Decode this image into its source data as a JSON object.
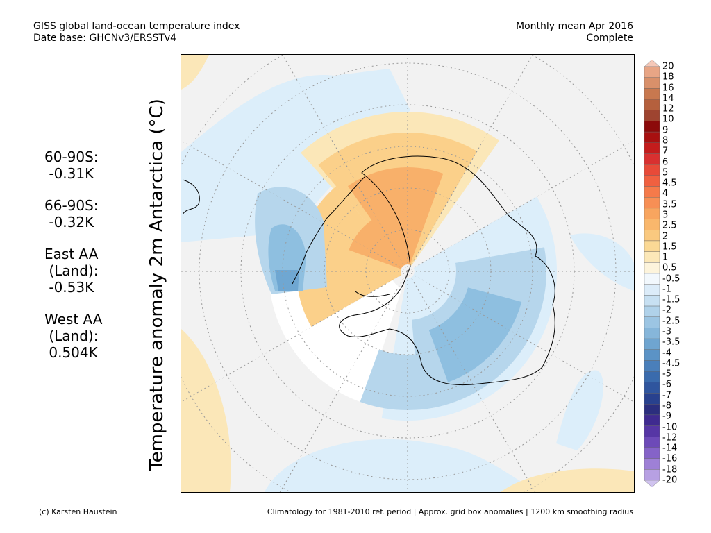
{
  "header": {
    "line1": "GISS global land-ocean temperature index",
    "line2": "Date base: GHCNv3/ERSSTv4",
    "period": "Monthly mean Apr 2016",
    "status": "Complete"
  },
  "vertical_title": "Temperature anomaly 2m Antarctica (°C)",
  "stats": [
    {
      "label": "60-90S:",
      "value": " -0.31K",
      "label2": ""
    },
    {
      "label": "66-90S:",
      "value": " -0.32K",
      "label2": ""
    },
    {
      "label": "East AA",
      "label2": " (Land):",
      "value": " -0.53K"
    },
    {
      "label": "West AA",
      "label2": " (Land):",
      "value": " 0.504K"
    }
  ],
  "colorbar": {
    "labels": [
      "20",
      "18",
      "16",
      "14",
      "12",
      "10",
      "9",
      "8",
      "7",
      "6",
      "5",
      "4.5",
      "4",
      "3.5",
      "3",
      "2.5",
      "2",
      "1.5",
      "1",
      "0.5",
      "-0.5",
      "-1",
      "-1.5",
      "-2",
      "-2.5",
      "-3",
      "-3.5",
      "-4",
      "-4.5",
      "-5",
      "-6",
      "-7",
      "-8",
      "-9",
      "-10",
      "-12",
      "-14",
      "-16",
      "-18",
      "-20"
    ],
    "colors": [
      "#f5c8b8",
      "#e8a585",
      "#d9906a",
      "#c8784f",
      "#b5603d",
      "#9e4430",
      "#8c0a0a",
      "#a81010",
      "#c41c1c",
      "#d93030",
      "#e84a38",
      "#f06040",
      "#f57a4a",
      "#f78f55",
      "#f8a55f",
      "#f9b76c",
      "#fac97f",
      "#fbd995",
      "#fce8b8",
      "#fdf4dc",
      "#f2f8fd",
      "#dcecf9",
      "#c7e0f2",
      "#b0d2ea",
      "#9cc5e3",
      "#86b6da",
      "#6fa5d0",
      "#5b93c6",
      "#4a7fba",
      "#3a6bad",
      "#2f559e",
      "#28418e",
      "#2b2e7e",
      "#3f2a90",
      "#5636a5",
      "#6d4ab8",
      "#8563c8",
      "#9e80d6",
      "#b7a0e3",
      "#d0c3ef"
    ]
  },
  "map": {
    "continent": "Antarctica",
    "colors": {
      "background": "#f2f2f2",
      "warm_light": "#fbe7b8",
      "warm_mid": "#fbd08a",
      "warm_strong": "#f8b06a",
      "cool_light": "#dceefa",
      "cool_mid": "#b6d6ec",
      "cool_strong": "#8ebfe0",
      "cool_deep": "#6fa7d2",
      "missing": "#ffffff"
    }
  },
  "footer": {
    "credit": "(c) Karsten Haustein",
    "note": "Climatology for 1981-2010 ref. period | Approx. grid box anomalies | 1200 km smoothing radius"
  }
}
